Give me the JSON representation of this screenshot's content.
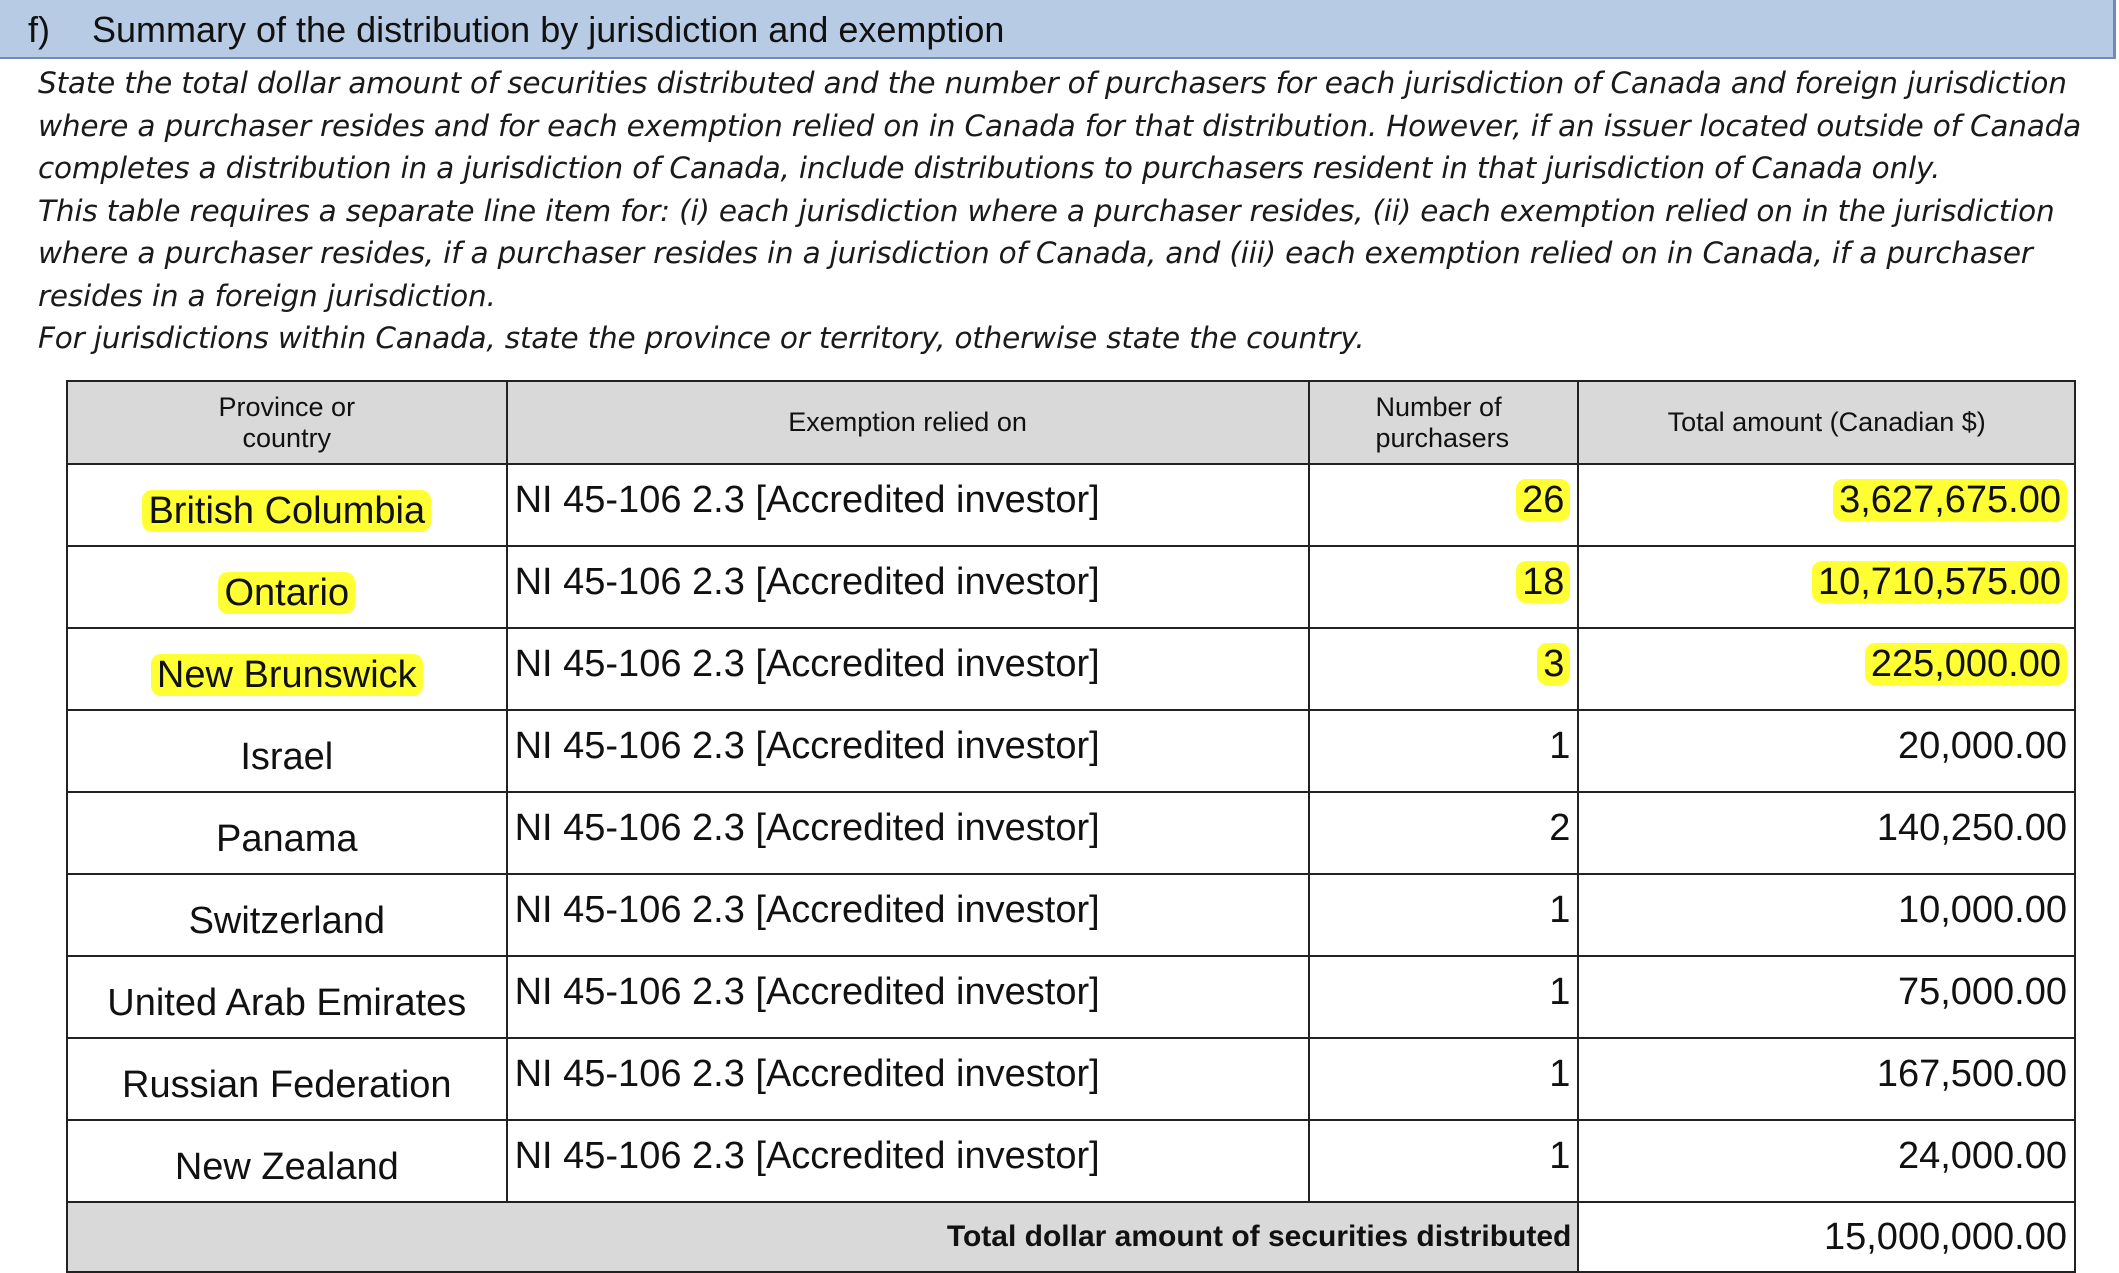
{
  "section": {
    "letter": "f)",
    "title": "Summary of the distribution by jurisdiction and exemption"
  },
  "instructions": {
    "paragraph1": "State the total dollar amount of securities distributed and the number of purchasers for each jurisdiction of Canada and foreign jurisdiction where a purchaser resides and for each exemption relied on in Canada for that distribution. However, if an issuer located outside of Canada completes a distribution in a jurisdiction of Canada, include distributions to purchasers resident in that jurisdiction of Canada only.",
    "paragraph2": "This table requires a separate line item for: (i) each jurisdiction where a purchaser resides, (ii) each exemption relied on in the jurisdiction where a purchaser resides, if a purchaser resides in a jurisdiction of Canada, and (iii) each exemption relied on in Canada, if a purchaser resides in a foreign jurisdiction.",
    "paragraph3": "For jurisdictions within Canada, state the province or territory, otherwise state the country."
  },
  "table": {
    "headers": {
      "jurisdiction_line1": "Province or",
      "jurisdiction_line2": "country",
      "exemption": "Exemption relied on",
      "purchasers_line1": "Number of",
      "purchasers_line2": "purchasers",
      "amount": "Total amount (Canadian $)"
    },
    "rows": [
      {
        "jurisdiction": "British Columbia",
        "exemption": "NI 45-106 2.3 [Accredited investor]",
        "purchasers": "26",
        "amount": "3,627,675.00"
      },
      {
        "jurisdiction": "Ontario",
        "exemption": "NI 45-106 2.3 [Accredited investor]",
        "purchasers": "18",
        "amount": "10,710,575.00"
      },
      {
        "jurisdiction": "New Brunswick",
        "exemption": "NI 45-106 2.3 [Accredited investor]",
        "purchasers": "3",
        "amount": "225,000.00"
      },
      {
        "jurisdiction": "Israel",
        "exemption": "NI 45-106 2.3 [Accredited investor]",
        "purchasers": "1",
        "amount": "20,000.00"
      },
      {
        "jurisdiction": "Panama",
        "exemption": "NI 45-106 2.3 [Accredited investor]",
        "purchasers": "2",
        "amount": "140,250.00"
      },
      {
        "jurisdiction": "Switzerland",
        "exemption": "NI 45-106 2.3 [Accredited investor]",
        "purchasers": "1",
        "amount": "10,000.00"
      },
      {
        "jurisdiction": "United Arab Emirates",
        "exemption": "NI 45-106 2.3 [Accredited investor]",
        "purchasers": "1",
        "amount": "75,000.00"
      },
      {
        "jurisdiction": "Russian Federation",
        "exemption": "NI 45-106 2.3 [Accredited investor]",
        "purchasers": "1",
        "amount": "167,500.00"
      },
      {
        "jurisdiction": "New Zealand",
        "exemption": "NI 45-106 2.3 [Accredited investor]",
        "purchasers": "1",
        "amount": "24,000.00"
      }
    ],
    "total_label": "Total dollar amount of securities distributed",
    "total_value": "15,000,000.00"
  },
  "colors": {
    "header_band": "#b8cbe4",
    "table_header": "#d9d9d9",
    "highlight": "#ffff33"
  }
}
